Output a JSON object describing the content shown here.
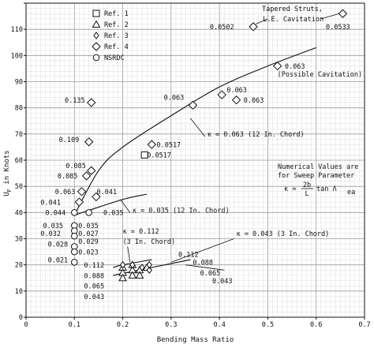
{
  "chart_data": {
    "type": "scatter",
    "xlabel": "Bending Mass Ratio",
    "ylabel": "U_F in Knots",
    "ylabel_main": "U",
    "ylabel_sub": "F",
    "ylabel_rest": " in Knots",
    "xlim": [
      0,
      0.7
    ],
    "ylim": [
      0,
      120
    ],
    "xticks": [
      0,
      0.1,
      0.2,
      0.3,
      0.4,
      0.5,
      0.6,
      0.7
    ],
    "xtick_labels": [
      "0",
      "0.1",
      "0.2",
      "0.3",
      "0.4",
      "0.5",
      "0.6",
      "0.7"
    ],
    "yticks": [
      0,
      10,
      20,
      30,
      40,
      50,
      60,
      70,
      80,
      90,
      100,
      110,
      120
    ],
    "ytick_labels": [
      "0",
      "10",
      "20",
      "30",
      "40",
      "50",
      "60",
      "70",
      "80",
      "90",
      "100",
      "110",
      ""
    ],
    "legend": [
      {
        "marker": "square",
        "label": "Ref. 1"
      },
      {
        "marker": "triangle",
        "label": "Ref. 2"
      },
      {
        "marker": "diamond-small",
        "label": "Ref. 3"
      },
      {
        "marker": "diamond",
        "label": "Ref. 4"
      },
      {
        "marker": "circle",
        "label": "NSRDC"
      }
    ],
    "series": [
      {
        "name": "Ref. 1",
        "marker": "square",
        "points": [
          {
            "x": 0.245,
            "y": 62
          }
        ]
      },
      {
        "name": "Ref. 2",
        "marker": "triangle",
        "points": [
          {
            "x": 0.2,
            "y": 19
          },
          {
            "x": 0.2,
            "y": 17
          },
          {
            "x": 0.2,
            "y": 15
          },
          {
            "x": 0.22,
            "y": 20
          },
          {
            "x": 0.22,
            "y": 18
          },
          {
            "x": 0.22,
            "y": 16
          },
          {
            "x": 0.235,
            "y": 18
          },
          {
            "x": 0.235,
            "y": 16
          },
          {
            "x": 0.25,
            "y": 19
          }
        ]
      },
      {
        "name": "Ref. 3",
        "marker": "diamond-small",
        "points": [
          {
            "x": 0.2,
            "y": 20
          },
          {
            "x": 0.22,
            "y": 20
          },
          {
            "x": 0.24,
            "y": 19
          },
          {
            "x": 0.255,
            "y": 18
          },
          {
            "x": 0.255,
            "y": 20
          }
        ]
      },
      {
        "name": "Ref. 4",
        "marker": "diamond",
        "points": [
          {
            "x": 0.135,
            "y": 82
          },
          {
            "x": 0.13,
            "y": 67
          },
          {
            "x": 0.125,
            "y": 54
          },
          {
            "x": 0.135,
            "y": 56
          },
          {
            "x": 0.145,
            "y": 46
          },
          {
            "x": 0.115,
            "y": 48
          },
          {
            "x": 0.11,
            "y": 44
          },
          {
            "x": 0.26,
            "y": 66
          },
          {
            "x": 0.345,
            "y": 81
          },
          {
            "x": 0.405,
            "y": 85
          },
          {
            "x": 0.435,
            "y": 83
          },
          {
            "x": 0.47,
            "y": 111
          },
          {
            "x": 0.655,
            "y": 116
          },
          {
            "x": 0.52,
            "y": 96
          }
        ]
      },
      {
        "name": "NSRDC",
        "marker": "circle",
        "points": [
          {
            "x": 0.1,
            "y": 40
          },
          {
            "x": 0.1,
            "y": 35
          },
          {
            "x": 0.1,
            "y": 33
          },
          {
            "x": 0.1,
            "y": 31
          },
          {
            "x": 0.1,
            "y": 27
          },
          {
            "x": 0.1,
            "y": 25
          },
          {
            "x": 0.1,
            "y": 21
          },
          {
            "x": 0.13,
            "y": 40
          }
        ]
      }
    ],
    "curves": [
      {
        "label": "κ = 0.063 (12 In. Chord)",
        "points": [
          [
            0.1,
            39
          ],
          [
            0.15,
            56
          ],
          [
            0.2,
            65
          ],
          [
            0.3,
            77
          ],
          [
            0.4,
            88
          ],
          [
            0.5,
            96
          ],
          [
            0.6,
            103
          ]
        ]
      },
      {
        "label": "κ = 0.035 (12 In. Chord)",
        "points": [
          [
            0.1,
            39
          ],
          [
            0.2,
            45
          ],
          [
            0.25,
            47
          ]
        ]
      },
      {
        "label": "κ = 0.112 (3 In. Chord)",
        "points": [
          [
            0.18,
            19
          ],
          [
            0.2,
            20
          ],
          [
            0.26,
            22
          ]
        ]
      },
      {
        "label": "κ = 0.043 (3 In. Chord)",
        "points": [
          [
            0.18,
            16
          ],
          [
            0.26,
            19
          ],
          [
            0.34,
            22
          ]
        ]
      }
    ],
    "annotations": [
      {
        "text": "Tapered Struts,",
        "x": 0.488,
        "y": 117
      },
      {
        "text": "L.E. Cavitation",
        "x": 0.49,
        "y": 113
      },
      {
        "text": "0.0502",
        "x": 0.38,
        "y": 110
      },
      {
        "text": "0.0533",
        "x": 0.62,
        "y": 110
      },
      {
        "text": "0.063",
        "x": 0.535,
        "y": 95
      },
      {
        "text": "(Possible Cavitation)",
        "x": 0.52,
        "y": 92
      },
      {
        "text": "0.063",
        "x": 0.285,
        "y": 83
      },
      {
        "text": "0.063",
        "x": 0.415,
        "y": 86
      },
      {
        "text": "0.063",
        "x": 0.45,
        "y": 82
      },
      {
        "text": "0.135",
        "x": 0.08,
        "y": 82
      },
      {
        "text": "0.109",
        "x": 0.068,
        "y": 67
      },
      {
        "text": "0.0517",
        "x": 0.27,
        "y": 65
      },
      {
        "text": "0.0517",
        "x": 0.25,
        "y": 61
      },
      {
        "text": "0.085",
        "x": 0.082,
        "y": 57
      },
      {
        "text": "0.085",
        "x": 0.065,
        "y": 53
      },
      {
        "text": "0.063",
        "x": 0.06,
        "y": 47
      },
      {
        "text": "0.041",
        "x": 0.146,
        "y": 47
      },
      {
        "text": "0.041",
        "x": 0.03,
        "y": 43
      },
      {
        "text": "0.044",
        "x": 0.04,
        "y": 39
      },
      {
        "text": "0.035",
        "x": 0.16,
        "y": 39
      },
      {
        "text": "0.035",
        "x": 0.035,
        "y": 34
      },
      {
        "text": "0.035",
        "x": 0.108,
        "y": 34
      },
      {
        "text": "0.032",
        "x": 0.03,
        "y": 31
      },
      {
        "text": "0.027",
        "x": 0.108,
        "y": 31
      },
      {
        "text": "0.028",
        "x": 0.045,
        "y": 27
      },
      {
        "text": "0.029",
        "x": 0.108,
        "y": 28
      },
      {
        "text": "0.023",
        "x": 0.108,
        "y": 24
      },
      {
        "text": "0.021",
        "x": 0.045,
        "y": 21
      },
      {
        "text": "κ = 0.063 (12 In. Chord)",
        "x": 0.375,
        "y": 69
      },
      {
        "text": "κ = 0.035 (12 In. Chord)",
        "x": 0.22,
        "y": 40
      },
      {
        "text": "κ = 0.112",
        "x": 0.2,
        "y": 32
      },
      {
        "text": "(3 In. Chord)",
        "x": 0.2,
        "y": 28
      },
      {
        "text": "κ = 0.043 (3 In. Chord)",
        "x": 0.435,
        "y": 31
      },
      {
        "text": "0.112",
        "x": 0.315,
        "y": 23
      },
      {
        "text": "0.088",
        "x": 0.345,
        "y": 20
      },
      {
        "text": "0.065",
        "x": 0.36,
        "y": 16
      },
      {
        "text": "0.043",
        "x": 0.385,
        "y": 13
      },
      {
        "text": "0.112",
        "x": 0.12,
        "y": 19
      },
      {
        "text": "0.088",
        "x": 0.12,
        "y": 15
      },
      {
        "text": "0.065",
        "x": 0.12,
        "y": 11
      },
      {
        "text": "0.043",
        "x": 0.12,
        "y": 7
      }
    ],
    "note": {
      "lines": [
        "Numerical Values are",
        "for Sweep Parameter"
      ],
      "formula_prefix": "κ =",
      "frac_num": "2b",
      "frac_den": "L",
      "formula_suffix": "tan Λ",
      "formula_sub": "ea"
    }
  }
}
